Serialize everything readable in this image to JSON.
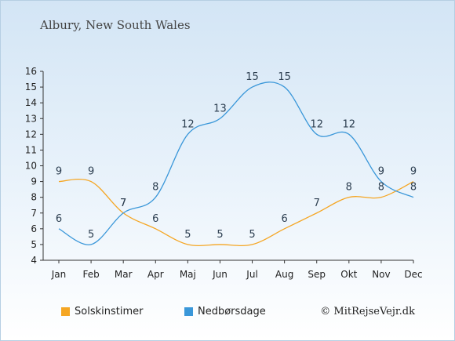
{
  "chart_data": {
    "type": "line",
    "title": "Albury, New South Wales",
    "categories": [
      "Jan",
      "Feb",
      "Mar",
      "Apr",
      "Maj",
      "Jun",
      "Jul",
      "Aug",
      "Sep",
      "Okt",
      "Nov",
      "Dec"
    ],
    "ylim": [
      4,
      16
    ],
    "yticks": [
      4,
      5,
      6,
      7,
      8,
      9,
      10,
      11,
      12,
      13,
      14,
      15,
      16
    ],
    "grid": false,
    "legend_position": "bottom",
    "series": [
      {
        "name": "Solskinstimer",
        "color": "#f5a623",
        "values": [
          9,
          9,
          7,
          6,
          5,
          5,
          5,
          6,
          7,
          8,
          8,
          9
        ]
      },
      {
        "name": "Nedbørsdage",
        "color": "#3a97d9",
        "values": [
          6,
          5,
          7,
          8,
          12,
          13,
          15,
          15,
          12,
          12,
          9,
          8
        ]
      }
    ]
  },
  "copyright": "© MitRejseVejr.dk"
}
